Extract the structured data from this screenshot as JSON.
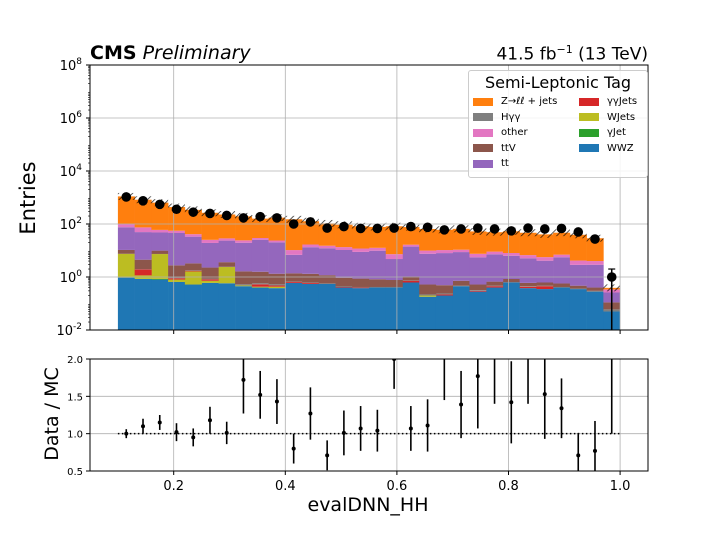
{
  "header": {
    "experiment": "CMS",
    "status": "Preliminary",
    "lumi": "41.5 fb",
    "lumi_exp": "−1",
    "energy": " (13 TeV)"
  },
  "legend": {
    "title": "Semi-Leptonic Tag",
    "items": [
      {
        "label": "Z→ℓℓ + jets",
        "color": "#ff7f0e"
      },
      {
        "label": "γγJets",
        "color": "#d62728"
      },
      {
        "label": "Hγγ",
        "color": "#7f7f7f"
      },
      {
        "label": "WJets",
        "color": "#bcbd22"
      },
      {
        "label": "other",
        "color": "#e377c2"
      },
      {
        "label": "γJet",
        "color": "#2ca02c"
      },
      {
        "label": "ttV",
        "color": "#8c564b"
      },
      {
        "label": "WWZ",
        "color": "#1f77b4"
      },
      {
        "label": "tt",
        "color": "#9467bd"
      }
    ]
  },
  "chart_data": [
    {
      "type": "bar",
      "stacked": true,
      "title": "",
      "xlabel": "evalDNN_HH",
      "ylabel": "Entries",
      "yscale": "log",
      "ylim": [
        0.01,
        100000000
      ],
      "xlim": [
        0.05,
        1.05
      ],
      "grid": true,
      "legend_position": "top-right",
      "x_ticks": [
        "0.2",
        "0.4",
        "0.6",
        "0.8",
        "1.0"
      ],
      "y_ticks": [
        "10^-2",
        "10^0",
        "10^2",
        "10^4",
        "10^6",
        "10^8"
      ],
      "bin_edges": [
        0.1,
        0.13,
        0.16,
        0.19,
        0.22,
        0.25,
        0.28,
        0.31,
        0.34,
        0.37,
        0.4,
        0.43,
        0.46,
        0.49,
        0.52,
        0.55,
        0.58,
        0.61,
        0.64,
        0.67,
        0.7,
        0.73,
        0.76,
        0.79,
        0.82,
        0.85,
        0.88,
        0.91,
        0.94,
        0.97,
        1.0
      ],
      "series": [
        {
          "name": "WWZ",
          "color": "#1f77b4",
          "values": [
            0.95,
            0.85,
            0.8,
            0.65,
            0.52,
            0.6,
            0.58,
            0.45,
            0.4,
            0.38,
            0.6,
            0.55,
            0.55,
            0.4,
            0.38,
            0.4,
            0.4,
            0.62,
            0.18,
            0.2,
            0.45,
            0.28,
            0.4,
            0.62,
            0.38,
            0.35,
            0.4,
            0.35,
            0.28,
            0.05
          ]
        },
        {
          "name": "γJet",
          "color": "#2ca02c",
          "values": [
            0,
            0,
            0.05,
            0,
            0,
            0,
            0,
            0,
            0,
            0,
            0,
            0,
            0,
            0,
            0,
            0,
            0,
            0,
            0,
            0,
            0,
            0,
            0,
            0,
            0,
            0,
            0,
            0,
            0,
            0
          ]
        },
        {
          "name": "WJets",
          "color": "#bcbd22",
          "values": [
            6.5,
            0.3,
            6.5,
            0.15,
            1.1,
            0.12,
            1.8,
            0.03,
            0.03,
            0.05,
            0,
            0,
            0,
            0,
            0,
            0,
            0,
            0,
            0.02,
            0,
            0,
            0,
            0,
            0,
            0,
            0,
            0,
            0,
            0,
            0
          ]
        },
        {
          "name": "γγJets",
          "color": "#d62728",
          "values": [
            0,
            0.8,
            0,
            0.1,
            0.1,
            0.1,
            0,
            0,
            0.1,
            0.05,
            0.05,
            0.05,
            0,
            0.02,
            0.02,
            0,
            0,
            0.1,
            0,
            0.02,
            0,
            0.02,
            0.05,
            0,
            0.05,
            0.1,
            0,
            0,
            0,
            0
          ]
        },
        {
          "name": "Hγγ",
          "color": "#7f7f7f",
          "values": [
            0.05,
            0.05,
            0.05,
            0.05,
            0.05,
            0.05,
            0.05,
            0.05,
            0.05,
            0.05,
            0.02,
            0.02,
            0.02,
            0.02,
            0.02,
            0.02,
            0.02,
            0.02,
            0.02,
            0.02,
            0.02,
            0.02,
            0.02,
            0.02,
            0.02,
            0.02,
            0.02,
            0.02,
            0.02,
            0.01
          ]
        },
        {
          "name": "ttV",
          "color": "#8c564b",
          "values": [
            3,
            2.5,
            2.5,
            1.8,
            1.5,
            1.4,
            1.2,
            1.1,
            1,
            0.8,
            0.7,
            0.7,
            0.6,
            0.5,
            0.45,
            0.4,
            0.35,
            0.3,
            0.3,
            0.25,
            0.25,
            0.2,
            0.2,
            0.2,
            0.15,
            0.15,
            0.15,
            0.1,
            0.1,
            0.05
          ]
        },
        {
          "name": "tt",
          "color": "#9467bd",
          "values": [
            65,
            45,
            38,
            43,
            30,
            17,
            20,
            18,
            24,
            19,
            5.5,
            12,
            11,
            9.5,
            8,
            9,
            4,
            13,
            7,
            7.5,
            8,
            5,
            6.5,
            5.5,
            4.5,
            3.5,
            5,
            2.4,
            2.5,
            0.15
          ]
        },
        {
          "name": "other",
          "color": "#e377c2",
          "values": [
            25,
            25,
            12,
            10,
            8,
            6,
            5,
            4.5,
            4,
            3.5,
            3.5,
            3.5,
            3,
            3,
            3,
            2.8,
            2.5,
            2.5,
            2.4,
            2.4,
            2,
            2,
            1.9,
            1.7,
            1.6,
            1.5,
            1.4,
            1.3,
            1.1,
            0.08
          ]
        },
        {
          "name": "Z→ℓℓ + jets",
          "color": "#ff7f0e",
          "values": [
            1000,
            750,
            580,
            380,
            300,
            240,
            200,
            170,
            130,
            150,
            140,
            110,
            90,
            80,
            70,
            65,
            75,
            60,
            55,
            50,
            55,
            45,
            40,
            45,
            40,
            35,
            40,
            35,
            25,
            0.05
          ]
        }
      ],
      "data_points": {
        "x": [
          0.115,
          0.145,
          0.175,
          0.205,
          0.235,
          0.265,
          0.295,
          0.325,
          0.355,
          0.385,
          0.415,
          0.445,
          0.475,
          0.505,
          0.535,
          0.565,
          0.595,
          0.625,
          0.655,
          0.685,
          0.715,
          0.745,
          0.775,
          0.805,
          0.835,
          0.865,
          0.895,
          0.925,
          0.955,
          0.985
        ],
        "y": [
          1050,
          750,
          550,
          360,
          280,
          250,
          210,
          170,
          190,
          170,
          100,
          120,
          70,
          80,
          68,
          68,
          70,
          80,
          75,
          60,
          65,
          70,
          65,
          55,
          70,
          65,
          68,
          50,
          27,
          1
        ],
        "yerr": [
          32,
          27,
          23,
          19,
          17,
          16,
          15,
          13,
          14,
          13,
          10,
          11,
          8,
          9,
          8,
          8,
          8,
          9,
          9,
          8,
          8,
          8,
          8,
          7,
          8,
          8,
          8,
          7,
          5,
          1
        ]
      }
    },
    {
      "type": "scatter",
      "title": "",
      "xlabel": "evalDNN_HH",
      "ylabel": "Data / MC",
      "ylim": [
        0.5,
        2.0
      ],
      "xlim": [
        0.05,
        1.05
      ],
      "grid": true,
      "reference_line": 1.0,
      "x_ticks": [
        "0.2",
        "0.4",
        "0.6",
        "0.8",
        "1.0"
      ],
      "y_ticks": [
        "0.5",
        "1.0",
        "1.5",
        "2.0"
      ],
      "x": [
        0.115,
        0.145,
        0.175,
        0.205,
        0.235,
        0.265,
        0.295,
        0.325,
        0.355,
        0.385,
        0.415,
        0.445,
        0.475,
        0.505,
        0.535,
        0.565,
        0.595,
        0.625,
        0.655,
        0.685,
        0.715,
        0.745,
        0.775,
        0.805,
        0.835,
        0.865,
        0.895,
        0.925,
        0.955,
        0.985
      ],
      "y": [
        1.0,
        1.1,
        1.15,
        1.02,
        0.95,
        1.18,
        1.01,
        1.72,
        1.52,
        1.43,
        0.8,
        1.27,
        0.71,
        1.01,
        1.07,
        1.04,
        2.0,
        1.07,
        1.11,
        2.05,
        1.39,
        1.77,
        2.1,
        1.42,
        2.2,
        1.53,
        1.34,
        0.71,
        0.77,
        2.2
      ],
      "yerr": [
        0.06,
        0.1,
        0.1,
        0.12,
        0.12,
        0.18,
        0.15,
        0.45,
        0.32,
        0.3,
        0.2,
        0.35,
        0.2,
        0.3,
        0.3,
        0.28,
        0.4,
        0.3,
        0.35,
        0.6,
        0.45,
        0.7,
        0.7,
        0.55,
        0.8,
        0.6,
        0.4,
        0.3,
        0.4,
        1.2
      ]
    }
  ]
}
